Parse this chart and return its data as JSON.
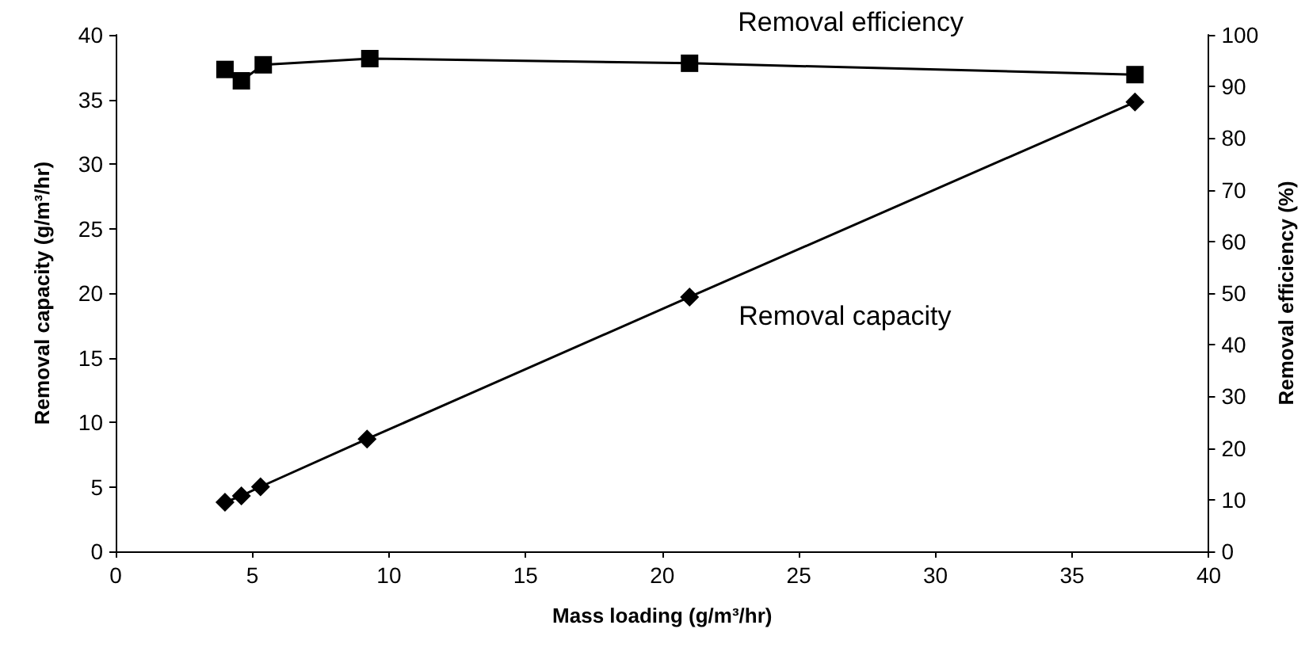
{
  "chart_data": {
    "type": "line",
    "xlabel": "Mass loading (g/m³/hr)",
    "ylabel": "Removal capacity (g/m³/hr)",
    "y2label": "Removal efficiency (%)",
    "xlim": [
      0,
      40
    ],
    "xticks": [
      0,
      5,
      10,
      15,
      20,
      25,
      30,
      35,
      40
    ],
    "ylim": [
      0,
      40
    ],
    "yticks": [
      0,
      5,
      10,
      15,
      20,
      25,
      30,
      35,
      40
    ],
    "y2lim": [
      0,
      100
    ],
    "y2ticks": [
      0,
      10,
      20,
      30,
      40,
      50,
      60,
      70,
      80,
      90,
      100
    ],
    "grid": false,
    "legend": false,
    "series": [
      {
        "name": "Removal efficiency",
        "axis": "y2",
        "color": "#000000",
        "marker": "square",
        "x": [
          4.0,
          4.6,
          5.4,
          9.3,
          21.0,
          37.3
        ],
        "values": [
          93.3,
          91.1,
          94.2,
          95.4,
          94.5,
          92.3
        ]
      },
      {
        "name": "Removal capacity",
        "axis": "y",
        "color": "#000000",
        "marker": "diamond",
        "x": [
          4.0,
          4.6,
          5.3,
          9.2,
          21.0,
          37.3
        ],
        "values": [
          3.8,
          4.3,
          5.0,
          8.7,
          19.7,
          34.8
        ]
      }
    ]
  }
}
